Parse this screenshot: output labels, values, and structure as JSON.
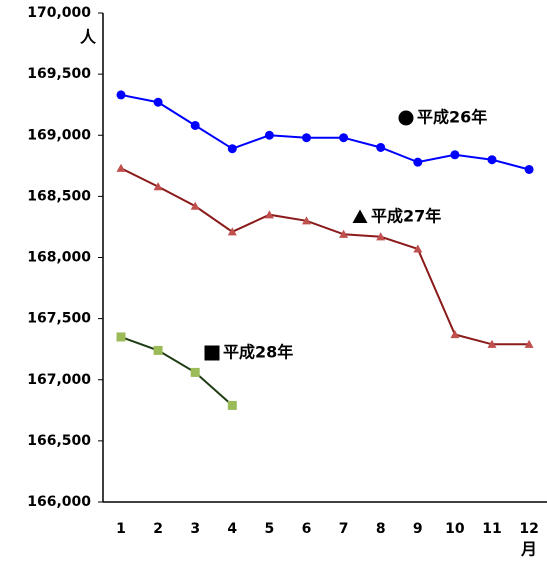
{
  "chart_data": {
    "type": "line",
    "y_unit": "人",
    "x_unit": "月",
    "categories": [
      "1",
      "2",
      "3",
      "4",
      "5",
      "6",
      "7",
      "8",
      "9",
      "10",
      "11",
      "12"
    ],
    "series": [
      {
        "name": "平成26年",
        "color": "#0000ff",
        "marker": "circle",
        "marker_color": "#0000ff",
        "values": [
          169330,
          169270,
          169080,
          168890,
          169000,
          168980,
          168980,
          168900,
          168780,
          168840,
          168800,
          168720
        ]
      },
      {
        "name": "平成27年",
        "color": "#8b1a1a",
        "marker": "triangle",
        "marker_color": "#c0504d",
        "values": [
          168730,
          168580,
          168420,
          168210,
          168350,
          168300,
          168190,
          168170,
          168070,
          167370,
          167290,
          167290
        ]
      },
      {
        "name": "平成28年",
        "color": "#1e3d14",
        "marker": "square",
        "marker_color": "#9bbb59",
        "values": [
          167350,
          167240,
          167060,
          166790,
          null,
          null,
          null,
          null,
          null,
          null,
          null,
          null
        ]
      }
    ],
    "ylim": [
      166000,
      170000
    ],
    "yticks": [
      {
        "value": 166000,
        "label": "166,000"
      },
      {
        "value": 166500,
        "label": "166,500"
      },
      {
        "value": 167000,
        "label": "167,000"
      },
      {
        "value": 167500,
        "label": "167,500"
      },
      {
        "value": 168000,
        "label": "168,000"
      },
      {
        "value": 168500,
        "label": "168,500"
      },
      {
        "value": 169000,
        "label": "169,000"
      },
      {
        "value": 169500,
        "label": "169,500"
      },
      {
        "value": 170000,
        "label": "170,000"
      }
    ],
    "grid": false
  }
}
